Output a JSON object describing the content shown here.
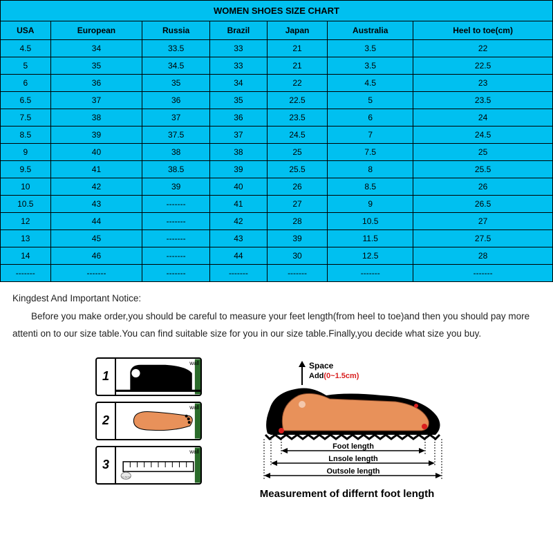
{
  "chart": {
    "title": "WOMEN SHOES SIZE CHART",
    "background_color": "#00c0f0",
    "border_color": "#000000",
    "text_color": "#000000",
    "columns": [
      "USA",
      "European",
      "Russia",
      "Brazil",
      "Japan",
      "Australia",
      "Heel to toe(cm)"
    ],
    "rows": [
      [
        "4.5",
        "34",
        "33.5",
        "33",
        "21",
        "3.5",
        "22"
      ],
      [
        "5",
        "35",
        "34.5",
        "33",
        "21",
        "3.5",
        "22.5"
      ],
      [
        "6",
        "36",
        "35",
        "34",
        "22",
        "4.5",
        "23"
      ],
      [
        "6.5",
        "37",
        "36",
        "35",
        "22.5",
        "5",
        "23.5"
      ],
      [
        "7.5",
        "38",
        "37",
        "36",
        "23.5",
        "6",
        "24"
      ],
      [
        "8.5",
        "39",
        "37.5",
        "37",
        "24.5",
        "7",
        "24.5"
      ],
      [
        "9",
        "40",
        "38",
        "38",
        "25",
        "7.5",
        "25"
      ],
      [
        "9.5",
        "41",
        "38.5",
        "39",
        "25.5",
        "8",
        "25.5"
      ],
      [
        "10",
        "42",
        "39",
        "40",
        "26",
        "8.5",
        "26"
      ],
      [
        "10.5",
        "43",
        "-------",
        "41",
        "27",
        "9",
        "26.5"
      ],
      [
        "12",
        "44",
        "-------",
        "42",
        "28",
        "10.5",
        "27"
      ],
      [
        "13",
        "45",
        "-------",
        "43",
        "39",
        "11.5",
        "27.5"
      ],
      [
        "14",
        "46",
        "-------",
        "44",
        "30",
        "12.5",
        "28"
      ],
      [
        "-------",
        "-------",
        "-------",
        "-------",
        "-------",
        "-------",
        "-------"
      ]
    ]
  },
  "notice": {
    "title": "Kingdest And Important Notice:",
    "body": "Before you make order,you should be careful to measure your feet length(from heel to toe)and then you should pay more attenti on to our size table.You can find suitable size for you in our size table.Finally,you decide what size you buy."
  },
  "steps": {
    "wall_label": "wall",
    "items": [
      "1",
      "2",
      "3"
    ]
  },
  "measure": {
    "space_label": "Space",
    "add_label": "Add",
    "add_range": "(0~1.5cm)",
    "foot_length": "Foot length",
    "insole_length": "Lnsole length",
    "outsole_length": "Outsole length",
    "caption": "Measurement of differnt foot length",
    "foot_color": "#e8915a",
    "shoe_color": "#000000",
    "arrow_color": "#000000",
    "range_color": "#d81e1e"
  }
}
